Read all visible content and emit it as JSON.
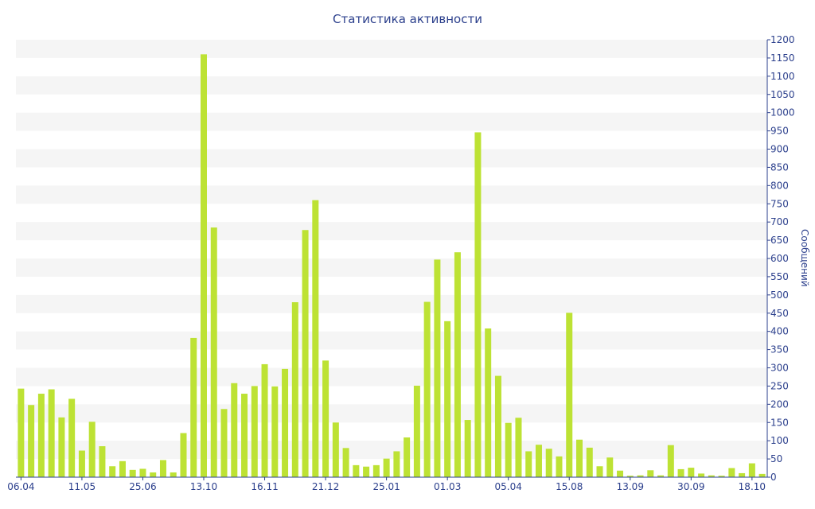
{
  "chart_data": {
    "type": "bar",
    "title": "Статистика активности",
    "ylabel": "Сообщений",
    "xlabel": "",
    "ylim": [
      0,
      1200
    ],
    "yticks": [
      0,
      50,
      100,
      150,
      200,
      250,
      300,
      350,
      400,
      450,
      500,
      550,
      600,
      650,
      700,
      750,
      800,
      850,
      900,
      950,
      1000,
      1050,
      1100,
      1150,
      1200
    ],
    "xtick_labels": [
      {
        "index": 0,
        "label": "06.04"
      },
      {
        "index": 6,
        "label": "11.05"
      },
      {
        "index": 12,
        "label": "25.06"
      },
      {
        "index": 18,
        "label": "13.10"
      },
      {
        "index": 24,
        "label": "16.11"
      },
      {
        "index": 30,
        "label": "21.12"
      },
      {
        "index": 36,
        "label": "25.01"
      },
      {
        "index": 42,
        "label": "01.03"
      },
      {
        "index": 48,
        "label": "05.04"
      },
      {
        "index": 54,
        "label": "15.08"
      },
      {
        "index": 60,
        "label": "13.09"
      },
      {
        "index": 66,
        "label": "30.09"
      },
      {
        "index": 72,
        "label": "18.10"
      }
    ],
    "values": [
      243,
      198,
      229,
      241,
      164,
      215,
      73,
      152,
      85,
      30,
      44,
      20,
      23,
      13,
      47,
      13,
      121,
      382,
      1160,
      685,
      187,
      258,
      229,
      250,
      310,
      249,
      297,
      480,
      678,
      760,
      320,
      150,
      80,
      33,
      29,
      33,
      51,
      71,
      109,
      251,
      481,
      597,
      428,
      617,
      157,
      946,
      408,
      278,
      149,
      163,
      71,
      89,
      78,
      57,
      451,
      103,
      81,
      30,
      54,
      18,
      4,
      5,
      19,
      5,
      88,
      22,
      26,
      10,
      5,
      4,
      25,
      11,
      38,
      9
    ],
    "bar_color": "#bde234",
    "band_color": "#f5f5f5",
    "axis_color": "#2b3f8c",
    "grid": "horizontal bands",
    "axis_position": "right"
  }
}
